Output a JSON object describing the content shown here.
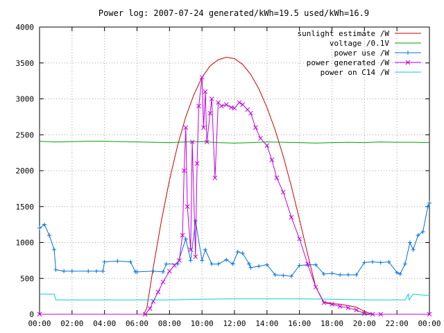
{
  "chart_data": {
    "type": "line",
    "title": "Power log: 2007-07-24 generated/kWh=19.5 used/kWh=16.9",
    "xlabel": "",
    "ylabel": "",
    "x_ticks": [
      "00:00",
      "02:00",
      "04:00",
      "06:00",
      "08:00",
      "10:00",
      "12:00",
      "14:00",
      "16:00",
      "18:00",
      "20:00",
      "22:00",
      "00:00"
    ],
    "y_ticks": [
      "0",
      "500",
      "1000",
      "1500",
      "2000",
      "2500",
      "3000",
      "3500",
      "4000"
    ],
    "xlim": [
      0,
      24
    ],
    "ylim": [
      0,
      4000
    ],
    "grid": true,
    "legend_position": "top-right",
    "series": [
      {
        "name": "sunlight estimate /W",
        "color": "#cc0000",
        "marker": "none",
        "x": [
          0,
          6.4,
          6.6,
          7.0,
          7.5,
          8.0,
          8.5,
          9.0,
          9.5,
          10.0,
          10.5,
          11.0,
          11.5,
          12.0,
          12.5,
          13.0,
          13.5,
          14.0,
          14.5,
          15.0,
          15.5,
          16.0,
          16.5,
          17.0,
          17.5,
          18.0,
          18.5,
          19.0,
          19.5,
          20.0,
          20.5,
          24.0
        ],
        "y": [
          0,
          0,
          80,
          650,
          1300,
          1870,
          2350,
          2750,
          3060,
          3300,
          3460,
          3545,
          3580,
          3560,
          3480,
          3340,
          3140,
          2880,
          2570,
          2200,
          1780,
          1320,
          840,
          380,
          170,
          150,
          140,
          120,
          100,
          40,
          0,
          0
        ]
      },
      {
        "name": "voltage /0.1V",
        "color": "#00a000",
        "marker": "none",
        "x": [
          0,
          1,
          2,
          3,
          4,
          5,
          6,
          7,
          8,
          9,
          10,
          11,
          12,
          13,
          14,
          15,
          16,
          17,
          18,
          19,
          20,
          21,
          22,
          23,
          24
        ],
        "y": [
          2410,
          2400,
          2405,
          2410,
          2410,
          2405,
          2400,
          2395,
          2390,
          2400,
          2405,
          2390,
          2385,
          2390,
          2400,
          2395,
          2390,
          2385,
          2390,
          2395,
          2390,
          2400,
          2395,
          2395,
          2390
        ]
      },
      {
        "name": "power use /W",
        "color": "#0070e0",
        "marker": "plus",
        "x": [
          0,
          0.3,
          0.6,
          0.9,
          1.0,
          1.5,
          2.0,
          3.0,
          3.5,
          3.9,
          4.0,
          4.8,
          5.6,
          5.9,
          6.0,
          7.0,
          7.6,
          7.8,
          8.5,
          9.0,
          9.3,
          9.6,
          10.0,
          10.2,
          10.6,
          11.0,
          11.5,
          11.9,
          12.2,
          12.5,
          12.9,
          13.0,
          13.5,
          14.0,
          14.5,
          15.0,
          15.5,
          16.0,
          16.5,
          17.0,
          17.5,
          18.0,
          18.5,
          19.0,
          19.5,
          20.0,
          20.5,
          21.0,
          21.5,
          22.0,
          22.2,
          22.5,
          22.8,
          23.0,
          23.3,
          23.6,
          23.9,
          24.0
        ],
        "y": [
          1200,
          1250,
          1100,
          900,
          620,
          600,
          600,
          600,
          600,
          600,
          730,
          740,
          730,
          590,
          590,
          600,
          590,
          700,
          700,
          1050,
          750,
          1300,
          750,
          900,
          700,
          700,
          760,
          700,
          870,
          850,
          700,
          650,
          670,
          690,
          550,
          540,
          530,
          680,
          690,
          690,
          560,
          570,
          550,
          550,
          550,
          720,
          730,
          720,
          730,
          580,
          560,
          700,
          1000,
          900,
          1100,
          1150,
          1500,
          1550
        ]
      },
      {
        "name": "power generated /W",
        "color": "#c000e0",
        "marker": "cross",
        "x": [
          0,
          6.5,
          6.8,
          7.0,
          7.3,
          7.6,
          8.0,
          8.3,
          8.6,
          8.8,
          8.9,
          9.0,
          9.1,
          9.3,
          9.4,
          9.6,
          9.7,
          9.8,
          10.0,
          10.1,
          10.2,
          10.3,
          10.5,
          10.6,
          10.8,
          11.0,
          11.2,
          11.5,
          11.8,
          12.0,
          12.3,
          12.5,
          12.8,
          13.0,
          13.3,
          13.6,
          14.0,
          14.3,
          14.6,
          15.0,
          15.5,
          16.0,
          16.5,
          17.0,
          17.5,
          18.0,
          18.5,
          19.0,
          19.5,
          20.0,
          20.5,
          21.0,
          24.0
        ],
        "y": [
          0,
          0,
          80,
          180,
          310,
          450,
          600,
          680,
          750,
          1100,
          2000,
          2600,
          1500,
          900,
          2400,
          800,
          2100,
          2900,
          3300,
          2600,
          3100,
          2400,
          2800,
          3000,
          1900,
          2950,
          2900,
          2920,
          2880,
          2870,
          2950,
          2920,
          2850,
          2800,
          2600,
          2450,
          2350,
          2150,
          1900,
          1700,
          1350,
          1050,
          700,
          380,
          160,
          140,
          110,
          90,
          60,
          10,
          0,
          0,
          0
        ]
      },
      {
        "name": "power on C14 /W",
        "color": "#00d0d0",
        "marker": "none",
        "x": [
          0,
          0.9,
          1.0,
          6.0,
          8.0,
          10.0,
          12.0,
          14.0,
          16.0,
          18.0,
          20.0,
          21.0,
          22.5,
          22.7,
          22.75,
          23.0,
          24.0
        ],
        "y": [
          280,
          280,
          200,
          200,
          200,
          210,
          215,
          215,
          215,
          210,
          200,
          200,
          200,
          280,
          200,
          280,
          260
        ]
      }
    ]
  }
}
